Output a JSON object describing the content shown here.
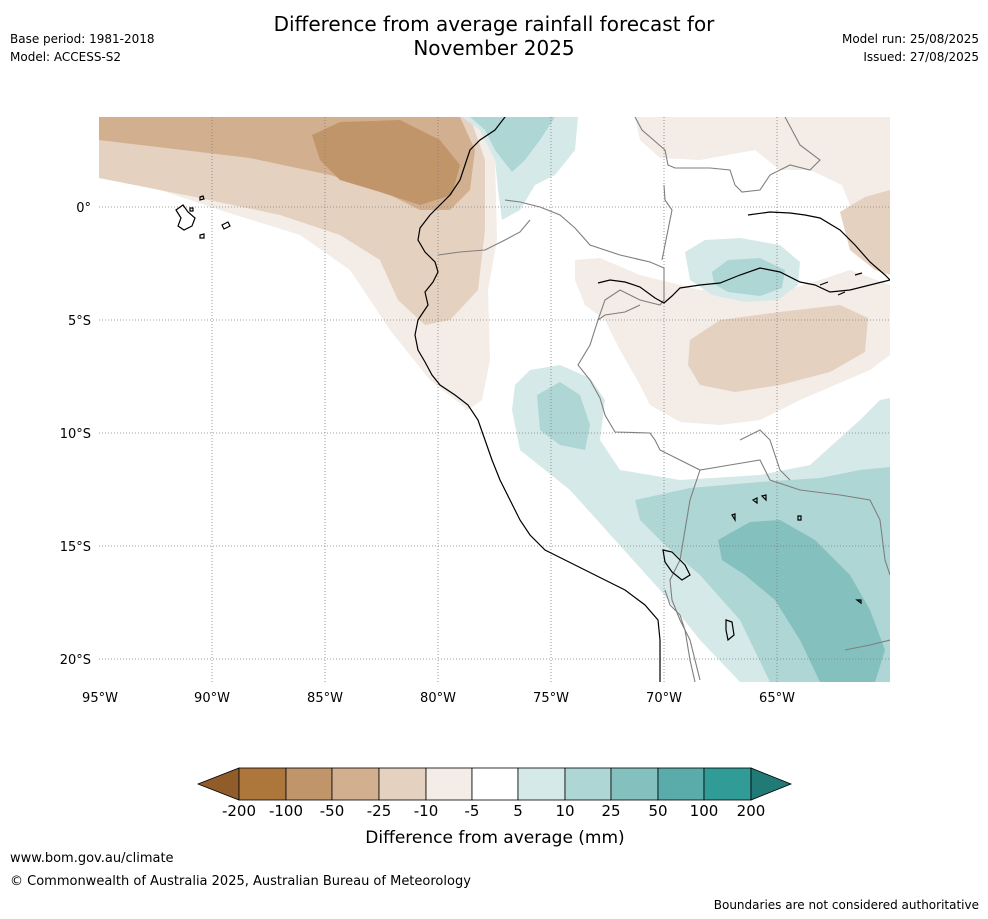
{
  "header": {
    "title_line1": "Difference from average rainfall forecast for",
    "title_line2": "November 2025",
    "base_period": "Base period: 1981-2018",
    "model": "Model: ACCESS-S2",
    "model_run": "Model run: 25/08/2025",
    "issued": "Issued: 27/08/2025"
  },
  "map": {
    "lon_labels": [
      "95°W",
      "90°W",
      "85°W",
      "80°W",
      "75°W",
      "70°W",
      "65°W"
    ],
    "lat_labels": [
      "0°",
      "5°S",
      "10°S",
      "15°S",
      "20°S"
    ],
    "colors": {
      "neg_200": "#8f5c2a",
      "neg_100": "#ad773c",
      "neg_50": "#c1956a",
      "neg_25": "#d2b08f",
      "neg_10": "#e5d1bf",
      "neg_5": "#f3ece7",
      "neutral": "#ffffff",
      "pos_10": "#d5e9e8",
      "pos_25": "#add6d5",
      "pos_50": "#84c0be",
      "pos_100": "#5aacaa",
      "pos_200": "#319b97",
      "pos_max": "#227a77",
      "coast": "#000000",
      "border": "#7f7f7f",
      "grid": "#808080"
    }
  },
  "colorbar": {
    "ticks": [
      "-200",
      "-100",
      "-50",
      "-25",
      "-10",
      "-5",
      "5",
      "10",
      "25",
      "50",
      "100",
      "200"
    ],
    "label": "Difference from average (mm)"
  },
  "footer": {
    "url": "www.bom.gov.au/climate",
    "copyright": "© Commonwealth of Australia 2025, Australian Bureau of Meteorology",
    "note": "Boundaries are not considered authoritative"
  }
}
